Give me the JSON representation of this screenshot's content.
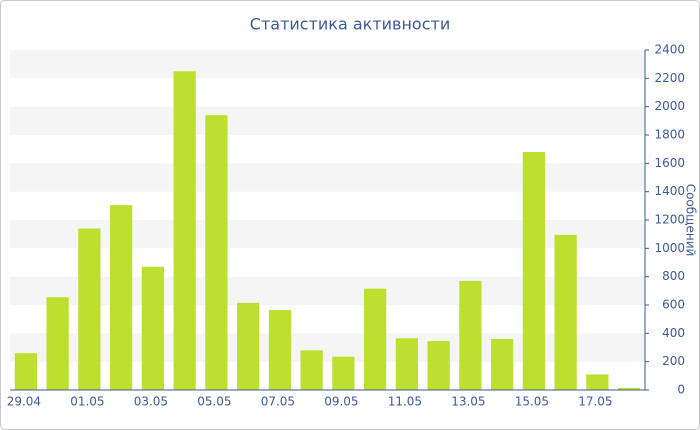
{
  "chart_data": {
    "type": "bar",
    "title": "Статистика активности",
    "y_label": "Сообщений",
    "categories": [
      "29.04",
      null,
      "01.05",
      null,
      "03.05",
      null,
      "05.05",
      null,
      "07.05",
      null,
      "09.05",
      null,
      "11.05",
      null,
      "13.05",
      null,
      "15.05",
      null,
      "17.05",
      null
    ],
    "values": [
      260,
      655,
      1140,
      1305,
      870,
      2250,
      1940,
      615,
      565,
      280,
      235,
      715,
      365,
      345,
      770,
      360,
      1680,
      1095,
      110,
      15
    ],
    "color": "#bde02e",
    "ylim": [
      0,
      2400
    ],
    "yticks": [
      0,
      200,
      400,
      600,
      800,
      1000,
      1200,
      1400,
      1600,
      1800,
      2000,
      2200,
      2400
    ],
    "y_axis_side": "right",
    "grid": "bands"
  }
}
